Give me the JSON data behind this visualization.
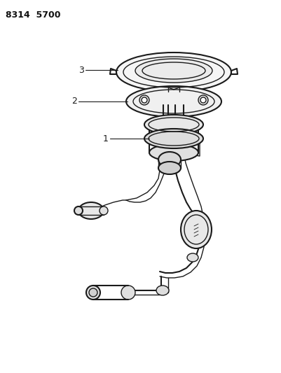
{
  "title": "8314  5700",
  "background_color": "#ffffff",
  "line_color": "#1a1a1a",
  "label_color": "#111111",
  "labels": [
    "3",
    "2",
    "1"
  ],
  "fig_width": 4.01,
  "fig_height": 5.33,
  "dpi": 100
}
